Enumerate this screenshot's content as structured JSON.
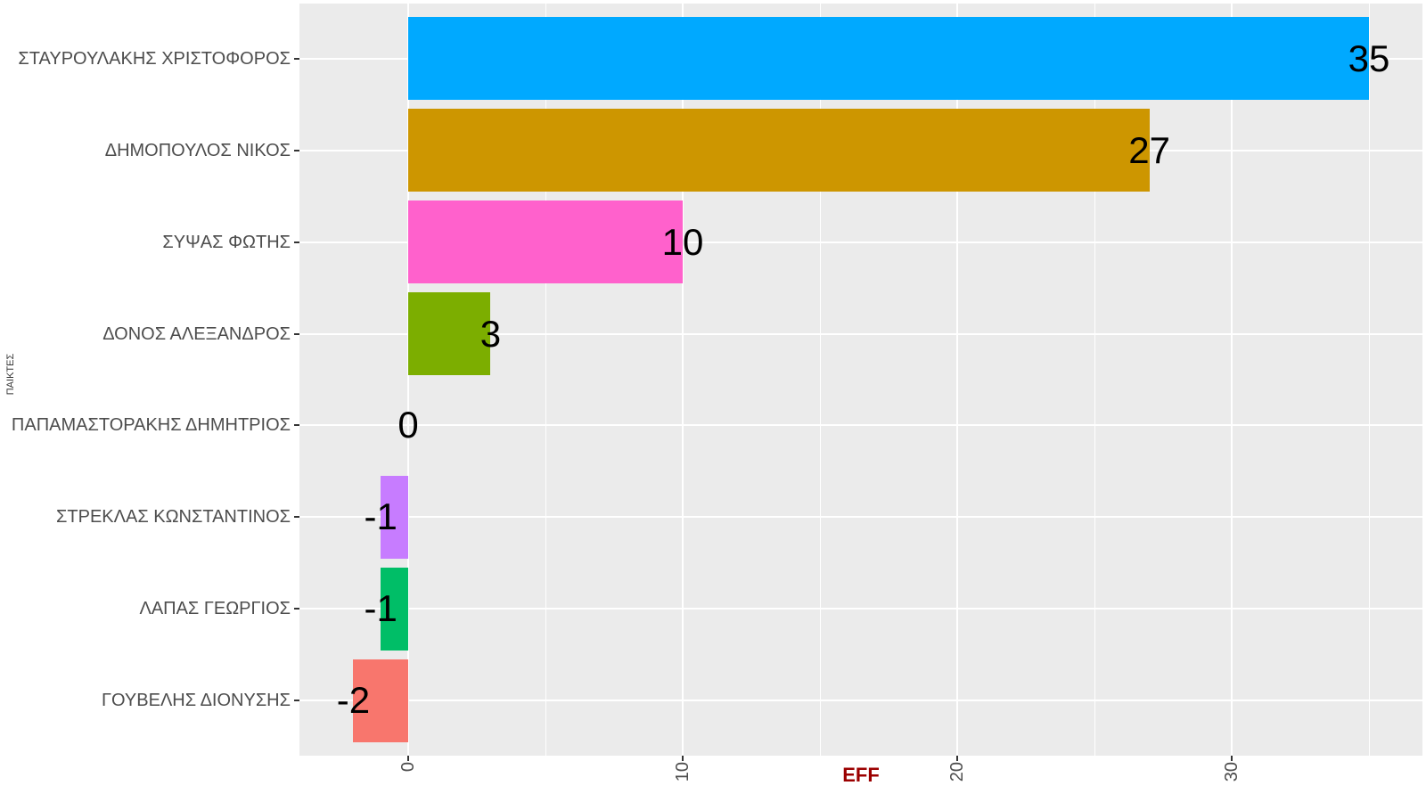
{
  "chart_data": {
    "type": "bar",
    "orientation": "horizontal",
    "title": "",
    "xlabel": "EFF",
    "ylabel": "ΠΑΙΚΤΕΣ",
    "categories": [
      "ΣΤΑΥΡΟΥΛΑΚΗΣ ΧΡΙΣΤΟΦΟΡΟΣ",
      "ΔΗΜΟΠΟΥΛΟΣ ΝΙΚΟΣ",
      "ΣΥΨΑΣ ΦΩΤΗΣ",
      "ΔΟΝΟΣ ΑΛΕΞΑΝΔΡΟΣ",
      "ΠΑΠΑΜΑΣΤΟΡΑΚΗΣ ΔΗΜΗΤΡΙΟΣ",
      "ΣΤΡΕΚΛΑΣ ΚΩΝΣΤΑΝΤΙΝΟΣ",
      "ΛΑΠΑΣ ΓΕΩΡΓΙΟΣ",
      "ΓΟΥΒΕΛΗΣ ΔΙΟΝΥΣΗΣ"
    ],
    "values": [
      35,
      27,
      10,
      3,
      0,
      -1,
      -1,
      -2
    ],
    "value_labels": [
      "35",
      "27",
      "10",
      "3",
      "0",
      "-1",
      "-1",
      "-2"
    ],
    "bar_colors": [
      "#00A9FF",
      "#CD9600",
      "#FF61CC",
      "#7CAE00",
      "#00BFC4",
      "#C77CFF",
      "#00BE67",
      "#F8766D"
    ],
    "x_ticks": [
      0,
      10,
      20,
      30
    ],
    "x_minor_gridlines": [
      5,
      15,
      25,
      35
    ],
    "xlim": [
      -3.96,
      36.95
    ],
    "grid": true,
    "legend_position": "none",
    "colors": {
      "panel_background": "#EBEBEB",
      "gridline": "#FFFFFF",
      "axis_text": "#4D4D4D",
      "tick_mark": "#333333",
      "value_label": "#000000",
      "x_title": "#9B0000",
      "y_title": "#333333"
    }
  }
}
